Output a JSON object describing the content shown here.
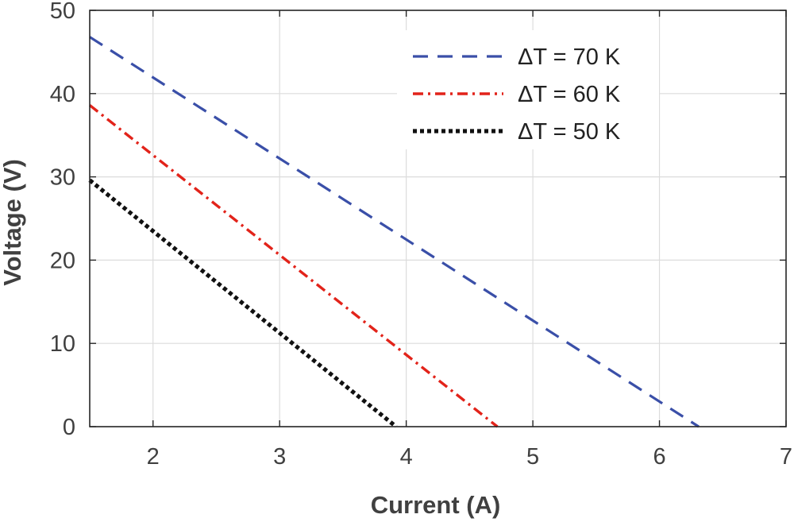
{
  "chart_data": {
    "type": "line",
    "title": "",
    "xlabel": "Current (A)",
    "ylabel": "Voltage (V)",
    "xlim": [
      1.5,
      7
    ],
    "ylim": [
      0,
      50
    ],
    "xticks": [
      2,
      3,
      4,
      5,
      6,
      7
    ],
    "yticks": [
      0,
      10,
      20,
      30,
      40,
      50
    ],
    "grid": true,
    "legend_position": "top-right",
    "series": [
      {
        "name": "ΔT = 70 K",
        "color": "#3a4fa8",
        "style": "dashed",
        "x": [
          1.5,
          6.31
        ],
        "y": [
          46.8,
          0
        ]
      },
      {
        "name": "ΔT = 60 K",
        "color": "#e2231a",
        "style": "dashdot",
        "x": [
          1.5,
          4.72
        ],
        "y": [
          38.6,
          0
        ]
      },
      {
        "name": "ΔT = 50 K",
        "color": "#111111",
        "style": "dotted",
        "x": [
          1.5,
          3.92
        ],
        "y": [
          29.6,
          0
        ]
      }
    ]
  }
}
